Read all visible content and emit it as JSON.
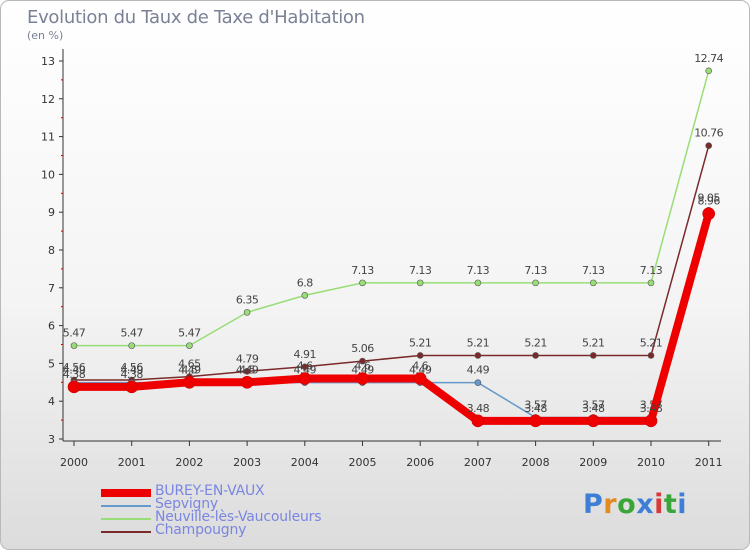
{
  "chart_data": {
    "type": "line",
    "title": "Evolution du Taux de Taxe d'Habitation",
    "ylabel": "(en %)",
    "xlabel": "",
    "categories": [
      "2000",
      "2001",
      "2002",
      "2003",
      "2004",
      "2005",
      "2006",
      "2007",
      "2008",
      "2009",
      "2010",
      "2011"
    ],
    "ylim": [
      3,
      13
    ],
    "yticks": [
      3,
      4,
      5,
      6,
      7,
      8,
      9,
      10,
      11,
      12,
      13
    ],
    "grid": false,
    "legend_position": "bottom-left",
    "series": [
      {
        "name": "Champougny",
        "color": "#7a2a2a",
        "width": 1.5,
        "values": [
          4.56,
          4.56,
          4.65,
          4.79,
          4.91,
          5.06,
          5.21,
          5.21,
          5.21,
          5.21,
          5.21,
          10.76
        ],
        "labels": [
          "4.56",
          "4.56",
          "4.65",
          "4.79",
          "4.91",
          "5.06",
          "5.21",
          "5.21",
          "5.21",
          "5.21",
          "5.21",
          "10.76"
        ]
      },
      {
        "name": "Neuville-lès-Vaucouleurs",
        "color": "#99dd77",
        "width": 1.5,
        "values": [
          5.47,
          5.47,
          5.47,
          6.35,
          6.8,
          7.13,
          7.13,
          7.13,
          7.13,
          7.13,
          7.13,
          12.74
        ],
        "labels": [
          "5.47",
          "5.47",
          "5.47",
          "6.35",
          "6.8",
          "7.13",
          "7.13",
          "7.13",
          "7.13",
          "7.13",
          "7.13",
          "12.74"
        ]
      },
      {
        "name": "Sepvigny",
        "color": "#6699cc",
        "width": 1.5,
        "values": [
          4.49,
          4.49,
          4.49,
          4.49,
          4.49,
          4.49,
          4.49,
          4.49,
          3.57,
          3.57,
          3.57,
          9.05
        ],
        "labels": [
          "4.49",
          "4.49",
          "4.49",
          "4.49",
          "4.49",
          "4.49",
          "4.49",
          "4.49",
          "3.57",
          "3.57",
          "3.57",
          "9.05"
        ]
      },
      {
        "name": "BUREY-EN-VAUX",
        "color": "#ee0000",
        "width": 8,
        "values": [
          4.38,
          4.38,
          4.5,
          4.5,
          4.6,
          4.6,
          4.6,
          3.48,
          3.48,
          3.48,
          3.48,
          8.96
        ],
        "labels": [
          "4.38",
          "4.38",
          "4.5",
          "4.5",
          "4.6",
          "4.6",
          "4.6",
          "3.48",
          "3.48",
          "3.48",
          "3.48",
          "8.96"
        ]
      }
    ]
  },
  "legend": [
    {
      "name": "BUREY-EN-VAUX",
      "color": "#ee0000"
    },
    {
      "name": "Sepvigny",
      "color": "#6699cc"
    },
    {
      "name": "Neuville-lès-Vaucouleurs",
      "color": "#99dd77"
    },
    {
      "name": "Champougny",
      "color": "#7a2a2a"
    }
  ],
  "brand": "Proxiti"
}
